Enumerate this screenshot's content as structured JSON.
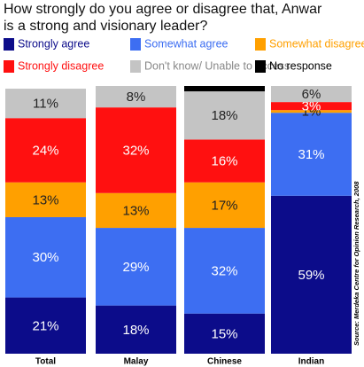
{
  "chart_data": {
    "type": "stacked-bar",
    "title": "How strongly do you agree or disagree that, Anwar is a strong and visionary leader?",
    "source": "Source: Merdeka Centre for Opinion Research, 2008",
    "categories": [
      "Total",
      "Malay",
      "Chinese",
      "Indian"
    ],
    "ylim": [
      0,
      100
    ],
    "series": [
      {
        "name": "Strongly agree",
        "color": "#0c0c8a",
        "values": [
          21,
          18,
          15,
          59
        ],
        "value_labels": [
          "21%",
          "18%",
          "15%",
          "59%"
        ]
      },
      {
        "name": "Somewhat agree",
        "color": "#3d6ef2",
        "values": [
          30,
          29,
          32,
          31
        ],
        "value_labels": [
          "30%",
          "29%",
          "32%",
          "31%"
        ]
      },
      {
        "name": "Somewhat disagree",
        "color": "#ffa000",
        "values": [
          13,
          13,
          17,
          1
        ],
        "value_labels": [
          "13%",
          "13%",
          "17%",
          "1%"
        ]
      },
      {
        "name": "Strongly disagree",
        "color": "#ff1010",
        "values": [
          24,
          32,
          16,
          3
        ],
        "value_labels": [
          "24%",
          "32%",
          "16%",
          "3%"
        ]
      },
      {
        "name": "Don't know/ Unable to access",
        "color": "#c4c4c4",
        "values": [
          11,
          8,
          18,
          6
        ],
        "value_labels": [
          "11%",
          "8%",
          "18%",
          "6%"
        ]
      },
      {
        "name": "No response",
        "color": "#000000",
        "values": [
          0,
          0,
          2,
          0
        ]
      }
    ]
  }
}
